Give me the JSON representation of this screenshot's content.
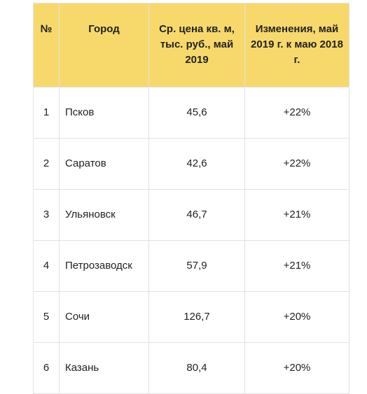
{
  "table": {
    "headers": {
      "num": "№",
      "city": "Город",
      "price": "Ср. цена кв. м, тыс. руб., май 2019",
      "change": "Изменения, май 2019 г. к маю 2018 г."
    },
    "rows": [
      {
        "num": "1",
        "city": "Псков",
        "price": "45,6",
        "change": "+22%"
      },
      {
        "num": "2",
        "city": "Саратов",
        "price": "42,6",
        "change": "+22%"
      },
      {
        "num": "3",
        "city": "Ульяновск",
        "price": "46,7",
        "change": "+21%"
      },
      {
        "num": "4",
        "city": "Петрозаводск",
        "price": "57,9",
        "change": "+21%"
      },
      {
        "num": "5",
        "city": "Сочи",
        "price": "126,7",
        "change": "+20%"
      },
      {
        "num": "6",
        "city": "Казань",
        "price": "80,4",
        "change": "+20%"
      }
    ]
  },
  "colors": {
    "header_background": "#f7d96b",
    "border": "#e2e2e2",
    "text": "#222222"
  }
}
